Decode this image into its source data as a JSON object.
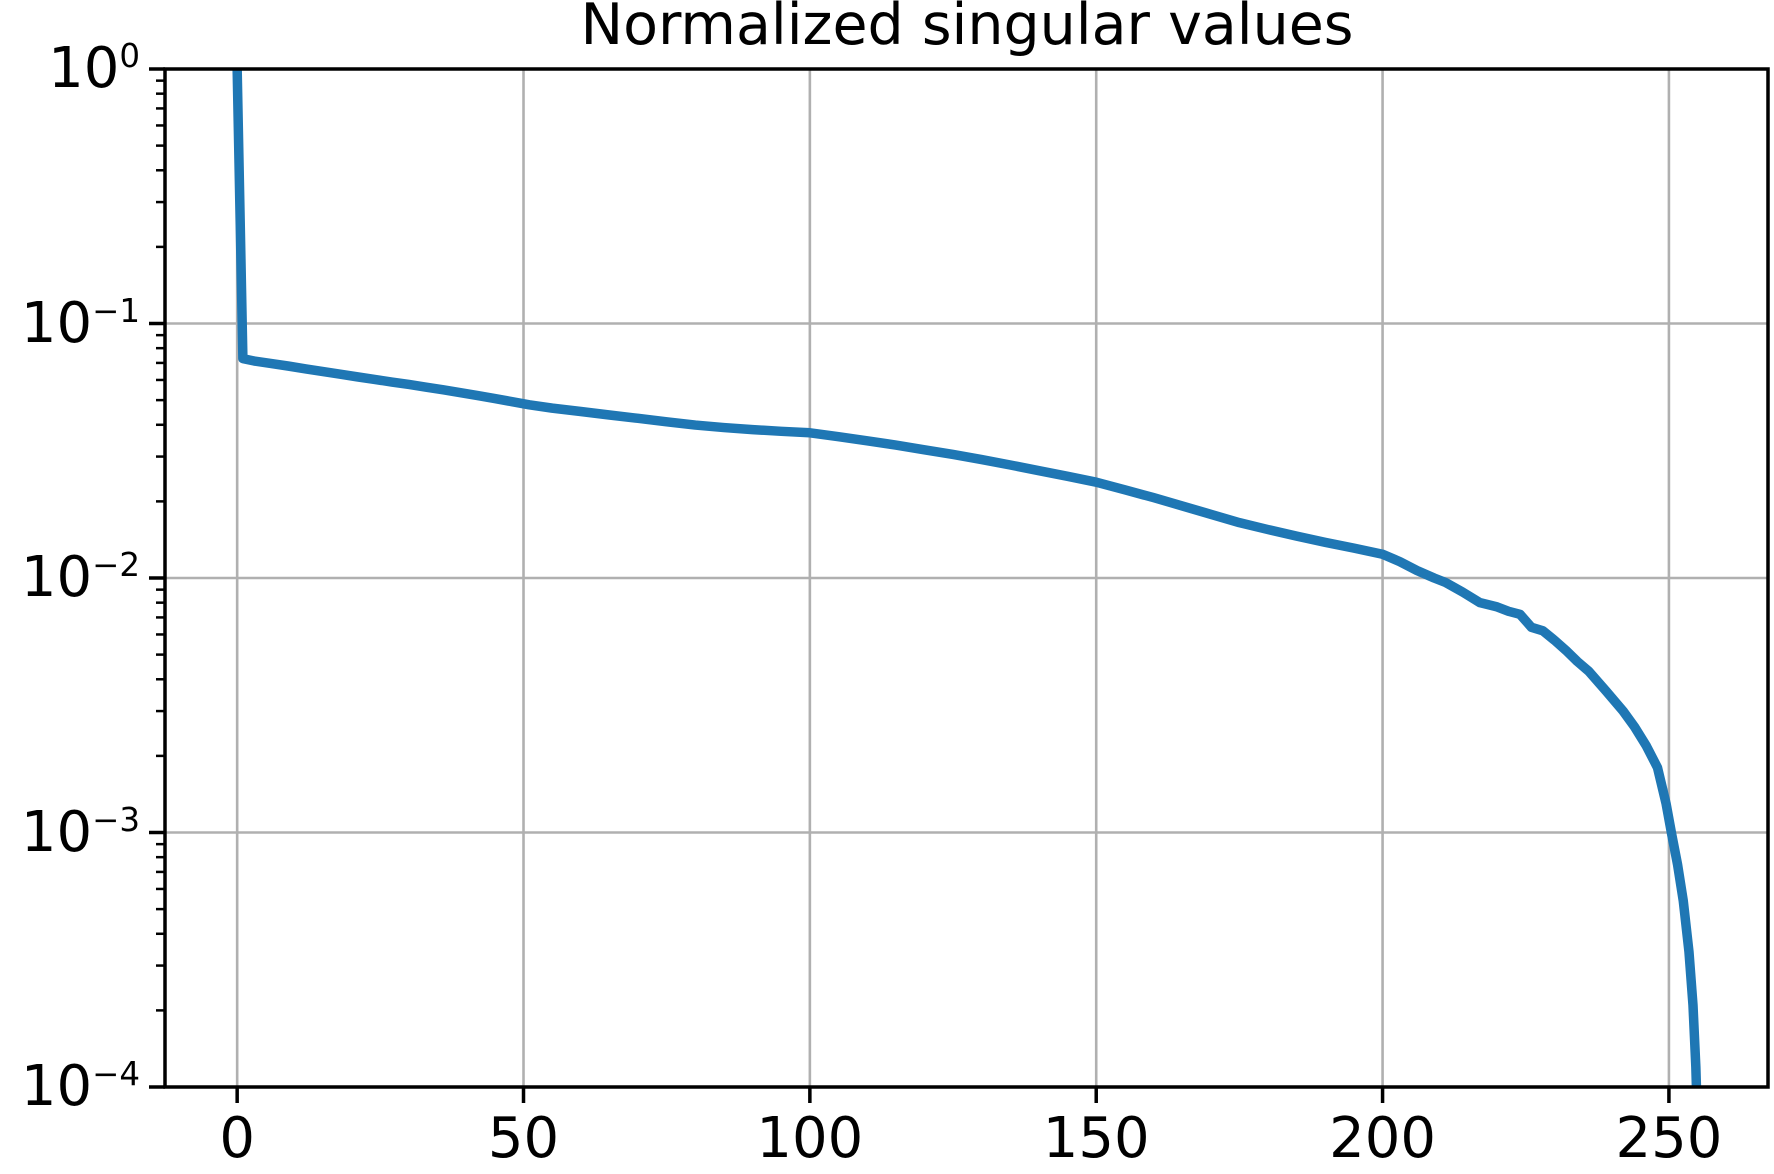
{
  "figure": {
    "background": "#ffffff"
  },
  "chart_data": {
    "type": "line",
    "title": "Normalized singular values",
    "xlabel": "",
    "ylabel": "",
    "yscale": "log",
    "grid": true,
    "legend": "none",
    "xlim": [
      -12.6,
      267.3
    ],
    "ylim": [
      0.0001,
      1.0
    ],
    "x_ticks": [
      0,
      50,
      100,
      150,
      200,
      250
    ],
    "y_ticks": [
      {
        "label": "10⁰",
        "exp": 0
      },
      {
        "label": "10⁻¹",
        "exp": -1
      },
      {
        "label": "10⁻²",
        "exp": -2
      },
      {
        "label": "10⁻³",
        "exp": -3
      },
      {
        "label": "10⁻⁴",
        "exp": -4
      }
    ],
    "colors": {
      "line": "#1f77b4",
      "grid": "#b0b0b0",
      "axis": "#000000",
      "text": "#000000",
      "background": "#ffffff"
    },
    "series": [
      {
        "name": "normalized_singular_values",
        "color": "#1f77b4",
        "points": [
          [
            0,
            1.0
          ],
          [
            1,
            0.0728
          ],
          [
            3,
            0.0712
          ],
          [
            6,
            0.0696
          ],
          [
            9,
            0.068
          ],
          [
            12,
            0.0663
          ],
          [
            15,
            0.0647
          ],
          [
            18,
            0.0632
          ],
          [
            21,
            0.0617
          ],
          [
            24,
            0.0603
          ],
          [
            27,
            0.0589
          ],
          [
            30,
            0.0576
          ],
          [
            33,
            0.0562
          ],
          [
            36,
            0.0549
          ],
          [
            39,
            0.0535
          ],
          [
            42,
            0.0521
          ],
          [
            45,
            0.0507
          ],
          [
            48,
            0.0493
          ],
          [
            51,
            0.0479
          ],
          [
            55,
            0.0465
          ],
          [
            60,
            0.0451
          ],
          [
            65,
            0.0437
          ],
          [
            70,
            0.0424
          ],
          [
            75,
            0.0411
          ],
          [
            80,
            0.0399
          ],
          [
            85,
            0.039
          ],
          [
            90,
            0.0383
          ],
          [
            95,
            0.0377
          ],
          [
            100,
            0.0372
          ],
          [
            105,
            0.0359
          ],
          [
            110,
            0.0346
          ],
          [
            115,
            0.0333
          ],
          [
            120,
            0.0319
          ],
          [
            125,
            0.0306
          ],
          [
            130,
            0.0292
          ],
          [
            135,
            0.0278
          ],
          [
            140,
            0.0264
          ],
          [
            145,
            0.0251
          ],
          [
            150,
            0.0238
          ],
          [
            155,
            0.0222
          ],
          [
            160,
            0.0207
          ],
          [
            165,
            0.0192
          ],
          [
            170,
            0.0178
          ],
          [
            175,
            0.0165
          ],
          [
            180,
            0.0155
          ],
          [
            185,
            0.0146
          ],
          [
            190,
            0.0138
          ],
          [
            195,
            0.0131
          ],
          [
            200,
            0.0124
          ],
          [
            203,
            0.0116
          ],
          [
            206,
            0.0107
          ],
          [
            209,
            0.01
          ],
          [
            211,
            0.0096
          ],
          [
            214,
            0.0088
          ],
          [
            217,
            0.008
          ],
          [
            220,
            0.0077
          ],
          [
            222,
            0.0074
          ],
          [
            224,
            0.0072
          ],
          [
            226,
            0.0064
          ],
          [
            228,
            0.0062
          ],
          [
            230,
            0.0057
          ],
          [
            232,
            0.0052
          ],
          [
            234,
            0.0047
          ],
          [
            236,
            0.0043
          ],
          [
            239,
            0.0036
          ],
          [
            242,
            0.003
          ],
          [
            244,
            0.0026
          ],
          [
            246,
            0.0022
          ],
          [
            248,
            0.0018
          ],
          [
            249.5,
            0.0013
          ],
          [
            250.5,
            0.00098
          ],
          [
            251.5,
            0.00075
          ],
          [
            252.5,
            0.00054
          ],
          [
            253.5,
            0.00034
          ],
          [
            254.2,
            0.00021
          ],
          [
            254.7,
            0.00012
          ],
          [
            255,
            7e-05
          ]
        ]
      }
    ]
  }
}
